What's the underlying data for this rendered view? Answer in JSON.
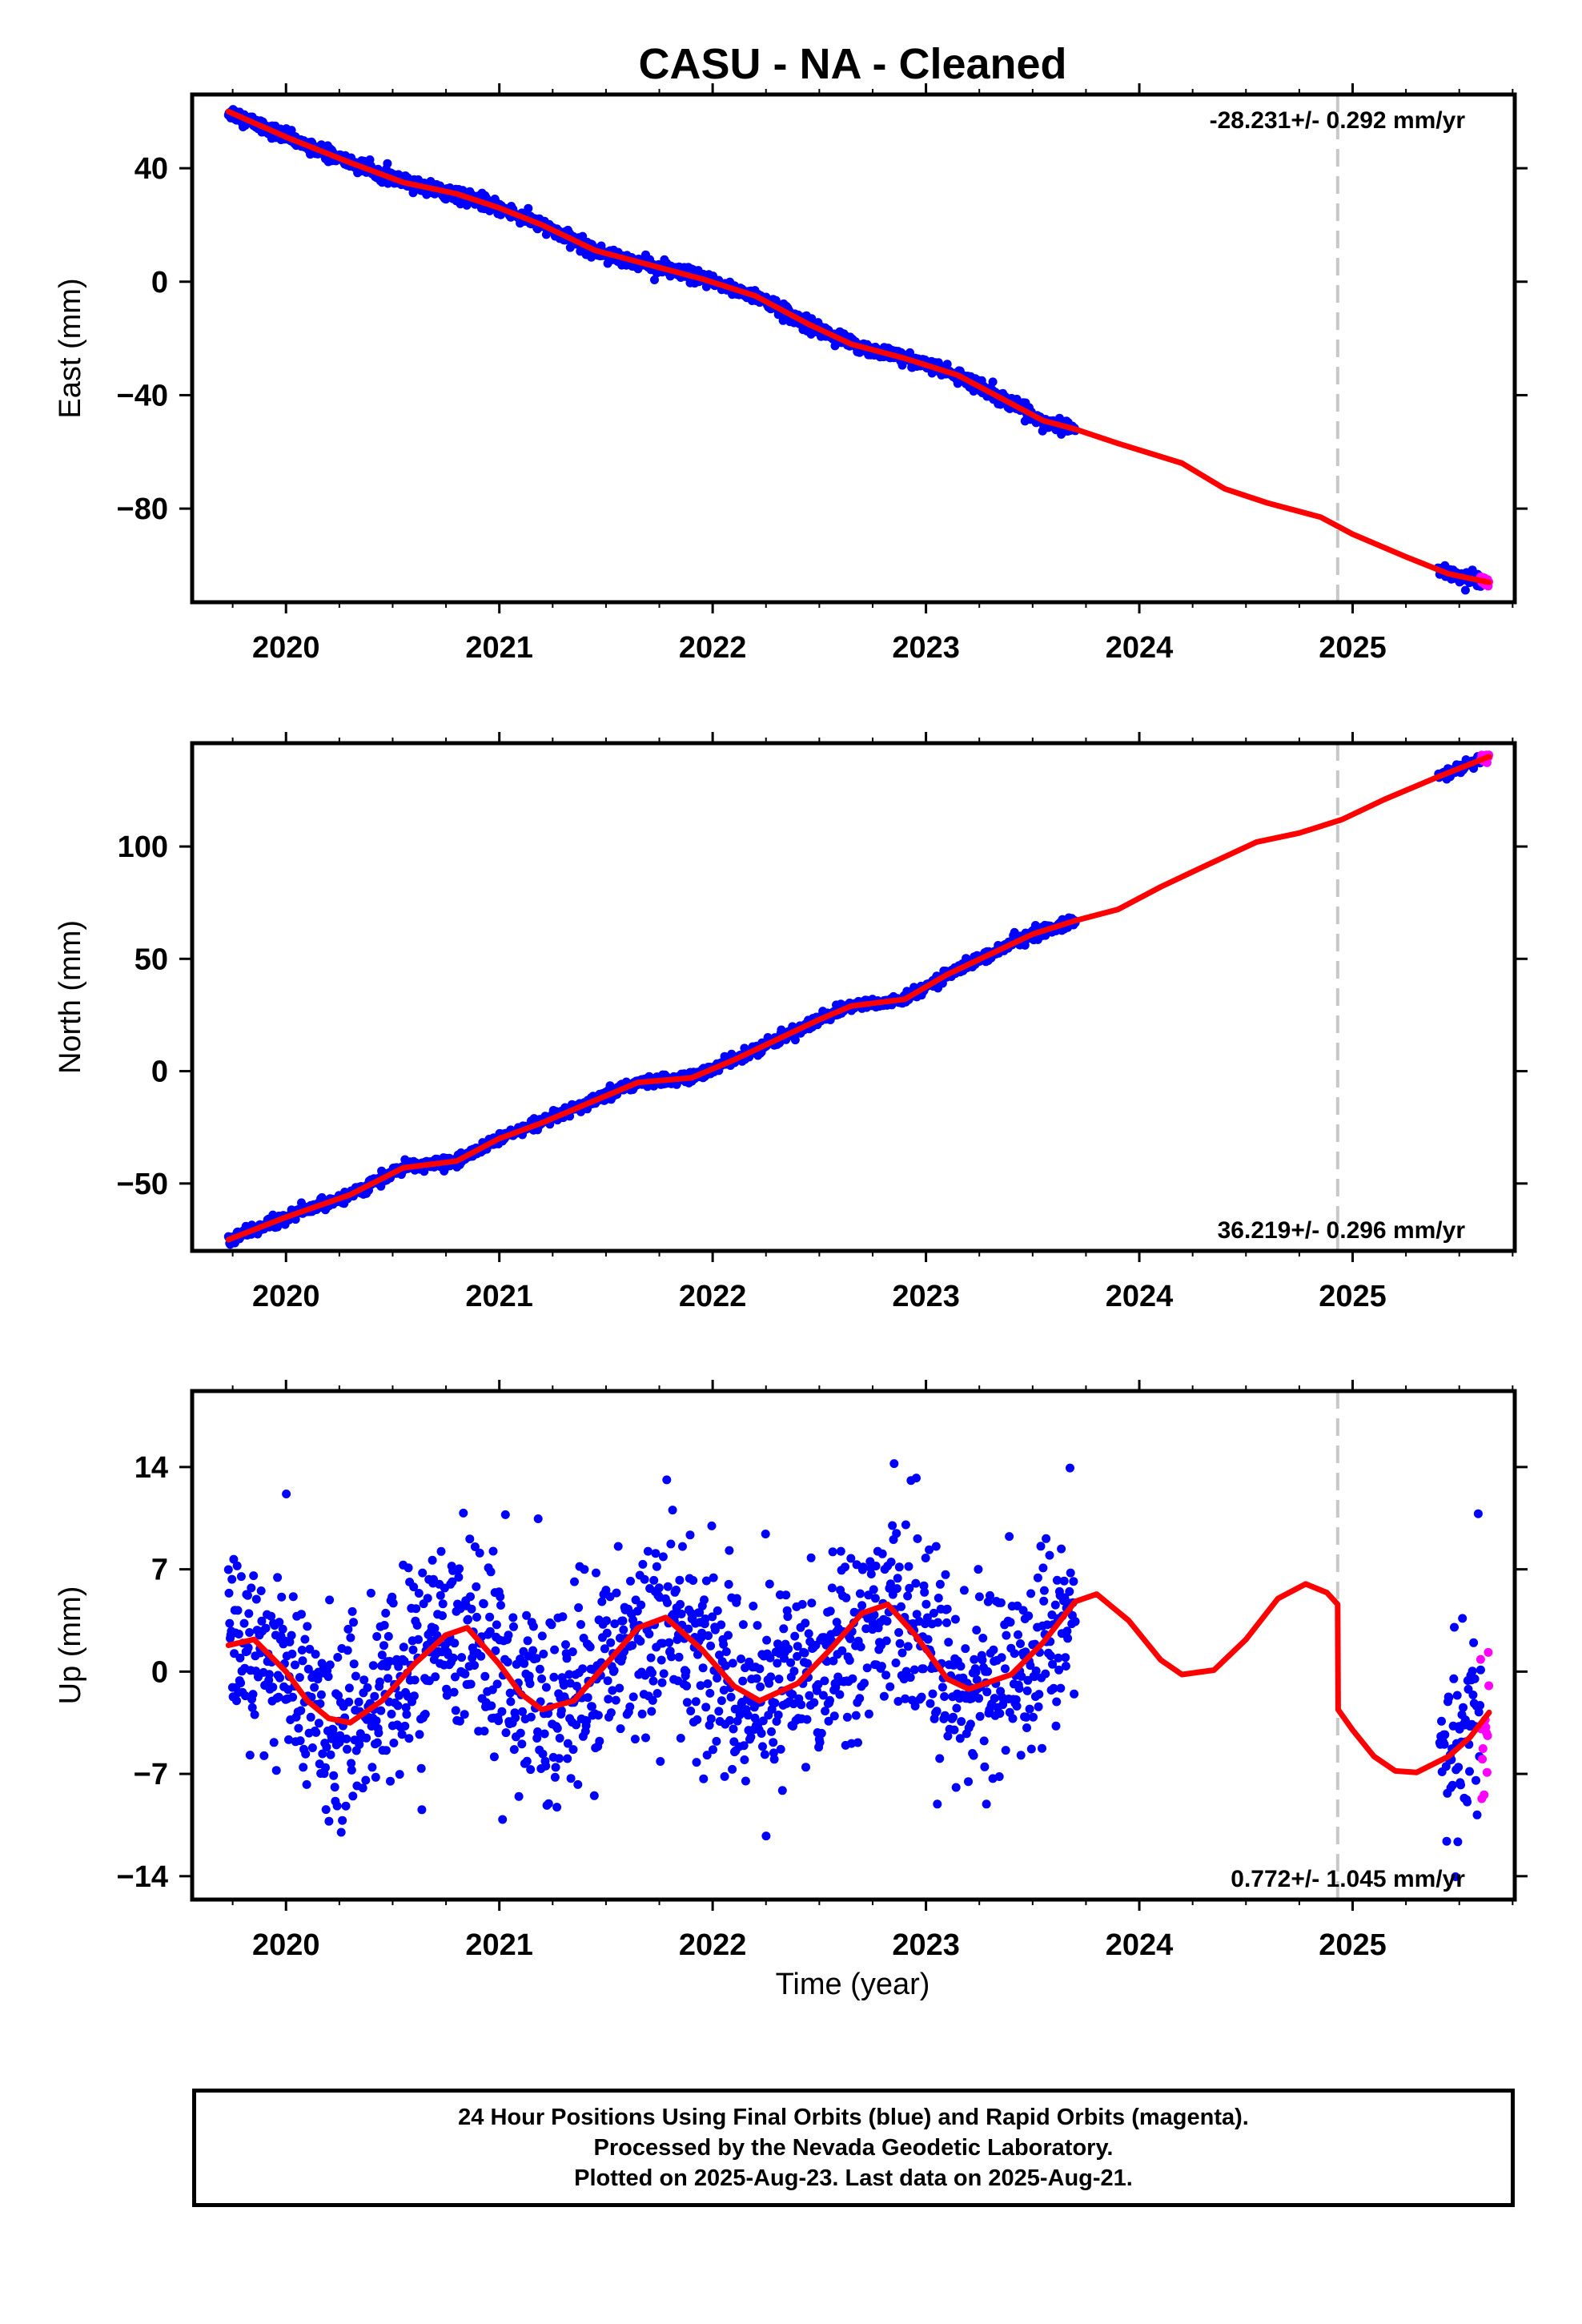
{
  "title": "CASU  - NA - Cleaned",
  "colors": {
    "final_orbits": "#0000ff",
    "rapid_orbits": "#ff00ff",
    "model": "#ff0000",
    "vertical_line": "#c8c8c8",
    "frame": "#000000"
  },
  "xlabel": "Time (year)",
  "x_ticks": [
    2020,
    2021,
    2022,
    2023,
    2024,
    2025
  ],
  "xlim": [
    2019.56,
    2025.76
  ],
  "marker_line_x": 2024.93,
  "footer": {
    "line1": "24 Hour Positions Using Final Orbits (blue) and Rapid Orbits (magenta).",
    "line2": "Processed by the Nevada Geodetic Laboratory.",
    "line3": "Plotted on 2025-Aug-23. Last data on 2025-Aug-21."
  },
  "chart_data": [
    {
      "type": "scatter",
      "panel": "east",
      "ylabel": "East (mm)",
      "ylim": [
        -113,
        66
      ],
      "y_ticks": [
        40,
        0,
        -40,
        -80
      ],
      "y_tick_labels": [
        "40",
        "0",
        "−40",
        "−80"
      ],
      "rate_label": "-28.231+/- 0.292 mm/yr",
      "rate_position": "top-right",
      "series": [
        {
          "name": "Final Orbits (blue)",
          "noise": 1.2,
          "segments": [
            [
              2019.73,
              2023.7
            ],
            [
              2025.4,
              2025.6
            ]
          ]
        },
        {
          "name": "Rapid Orbits (magenta)",
          "noise": 1.2,
          "segments": [
            [
              2025.6,
              2025.64
            ]
          ]
        }
      ],
      "model": [
        [
          2019.73,
          60
        ],
        [
          2020.0,
          51
        ],
        [
          2020.3,
          42
        ],
        [
          2020.55,
          35
        ],
        [
          2020.8,
          31
        ],
        [
          2021.0,
          26
        ],
        [
          2021.2,
          20
        ],
        [
          2021.45,
          11
        ],
        [
          2021.7,
          6
        ],
        [
          2021.95,
          1
        ],
        [
          2022.2,
          -5
        ],
        [
          2022.45,
          -15
        ],
        [
          2022.65,
          -22
        ],
        [
          2022.9,
          -27
        ],
        [
          2023.15,
          -33
        ],
        [
          2023.35,
          -41
        ],
        [
          2023.55,
          -49
        ],
        [
          2023.7,
          -52
        ],
        [
          2023.9,
          -57
        ],
        [
          2024.2,
          -64
        ],
        [
          2024.4,
          -73
        ],
        [
          2024.6,
          -78
        ],
        [
          2024.85,
          -83
        ],
        [
          2025.0,
          -89
        ],
        [
          2025.25,
          -97
        ],
        [
          2025.45,
          -103
        ],
        [
          2025.64,
          -106
        ]
      ]
    },
    {
      "type": "scatter",
      "panel": "north",
      "ylabel": "North (mm)",
      "ylim": [
        -80,
        146
      ],
      "y_ticks": [
        100,
        50,
        0,
        -50
      ],
      "y_tick_labels": [
        "100",
        "50",
        "0",
        "−50"
      ],
      "rate_label": "36.219+/- 0.296 mm/yr",
      "rate_position": "bottom-right",
      "series": [
        {
          "name": "Final Orbits (blue)",
          "noise": 1.2,
          "segments": [
            [
              2019.73,
              2023.7
            ],
            [
              2025.4,
              2025.6
            ]
          ]
        },
        {
          "name": "Rapid Orbits (magenta)",
          "noise": 1.2,
          "segments": [
            [
              2025.6,
              2025.64
            ]
          ]
        }
      ],
      "model": [
        [
          2019.73,
          -75
        ],
        [
          2020.0,
          -65
        ],
        [
          2020.3,
          -55
        ],
        [
          2020.55,
          -43
        ],
        [
          2020.8,
          -40
        ],
        [
          2021.0,
          -30
        ],
        [
          2021.2,
          -23
        ],
        [
          2021.45,
          -13
        ],
        [
          2021.65,
          -5
        ],
        [
          2021.9,
          -3
        ],
        [
          2022.1,
          5
        ],
        [
          2022.3,
          14
        ],
        [
          2022.5,
          23
        ],
        [
          2022.65,
          29
        ],
        [
          2022.9,
          32
        ],
        [
          2023.1,
          43
        ],
        [
          2023.3,
          52
        ],
        [
          2023.5,
          61
        ],
        [
          2023.7,
          67
        ],
        [
          2023.9,
          72
        ],
        [
          2024.1,
          82
        ],
        [
          2024.3,
          91
        ],
        [
          2024.55,
          102
        ],
        [
          2024.75,
          106
        ],
        [
          2024.95,
          112
        ],
        [
          2025.15,
          121
        ],
        [
          2025.4,
          131
        ],
        [
          2025.64,
          140
        ]
      ]
    },
    {
      "type": "scatter",
      "panel": "up",
      "ylabel": "Up (mm)",
      "ylim": [
        -15.6,
        19.2
      ],
      "y_ticks": [
        14,
        7,
        0,
        -7,
        -14
      ],
      "y_tick_labels": [
        "14",
        "7",
        "0",
        "−7",
        "−14"
      ],
      "rate_label": "0.772+/- 1.045 mm/yr",
      "rate_position": "bottom-right",
      "series": [
        {
          "name": "Final Orbits (blue)",
          "noise": 3.4,
          "segments": [
            [
              2019.73,
              2023.7
            ],
            [
              2025.4,
              2025.6
            ]
          ]
        },
        {
          "name": "Rapid Orbits (magenta)",
          "noise": 3.4,
          "segments": [
            [
              2025.6,
              2025.64
            ]
          ]
        }
      ],
      "model": [
        [
          2019.73,
          1.8
        ],
        [
          2019.85,
          2.2
        ],
        [
          2020.0,
          0.0
        ],
        [
          2020.1,
          -2.0
        ],
        [
          2020.2,
          -3.2
        ],
        [
          2020.3,
          -3.5
        ],
        [
          2020.45,
          -2.0
        ],
        [
          2020.6,
          0.5
        ],
        [
          2020.75,
          2.5
        ],
        [
          2020.85,
          3.0
        ],
        [
          2021.0,
          0.5
        ],
        [
          2021.1,
          -1.5
        ],
        [
          2021.2,
          -2.6
        ],
        [
          2021.35,
          -2.0
        ],
        [
          2021.5,
          0.5
        ],
        [
          2021.65,
          3.0
        ],
        [
          2021.78,
          3.7
        ],
        [
          2021.95,
          1.5
        ],
        [
          2022.1,
          -1.0
        ],
        [
          2022.22,
          -2.0
        ],
        [
          2022.4,
          -0.8
        ],
        [
          2022.55,
          1.5
        ],
        [
          2022.7,
          4.0
        ],
        [
          2022.82,
          4.6
        ],
        [
          2022.95,
          2.5
        ],
        [
          2023.1,
          -0.5
        ],
        [
          2023.2,
          -1.2
        ],
        [
          2023.4,
          -0.2
        ],
        [
          2023.55,
          2.0
        ],
        [
          2023.7,
          4.8
        ],
        [
          2023.8,
          5.3
        ],
        [
          2023.95,
          3.5
        ],
        [
          2024.1,
          0.8
        ],
        [
          2024.2,
          -0.2
        ],
        [
          2024.35,
          0.1
        ],
        [
          2024.5,
          2.2
        ],
        [
          2024.65,
          5.0
        ],
        [
          2024.78,
          6.0
        ],
        [
          2024.88,
          5.4
        ],
        [
          2024.93,
          4.6
        ],
        [
          2024.932,
          -2.6
        ],
        [
          2025.0,
          -4.0
        ],
        [
          2025.1,
          -5.8
        ],
        [
          2025.2,
          -6.8
        ],
        [
          2025.3,
          -6.9
        ],
        [
          2025.45,
          -5.8
        ],
        [
          2025.55,
          -4.5
        ],
        [
          2025.64,
          -2.8
        ]
      ]
    }
  ]
}
